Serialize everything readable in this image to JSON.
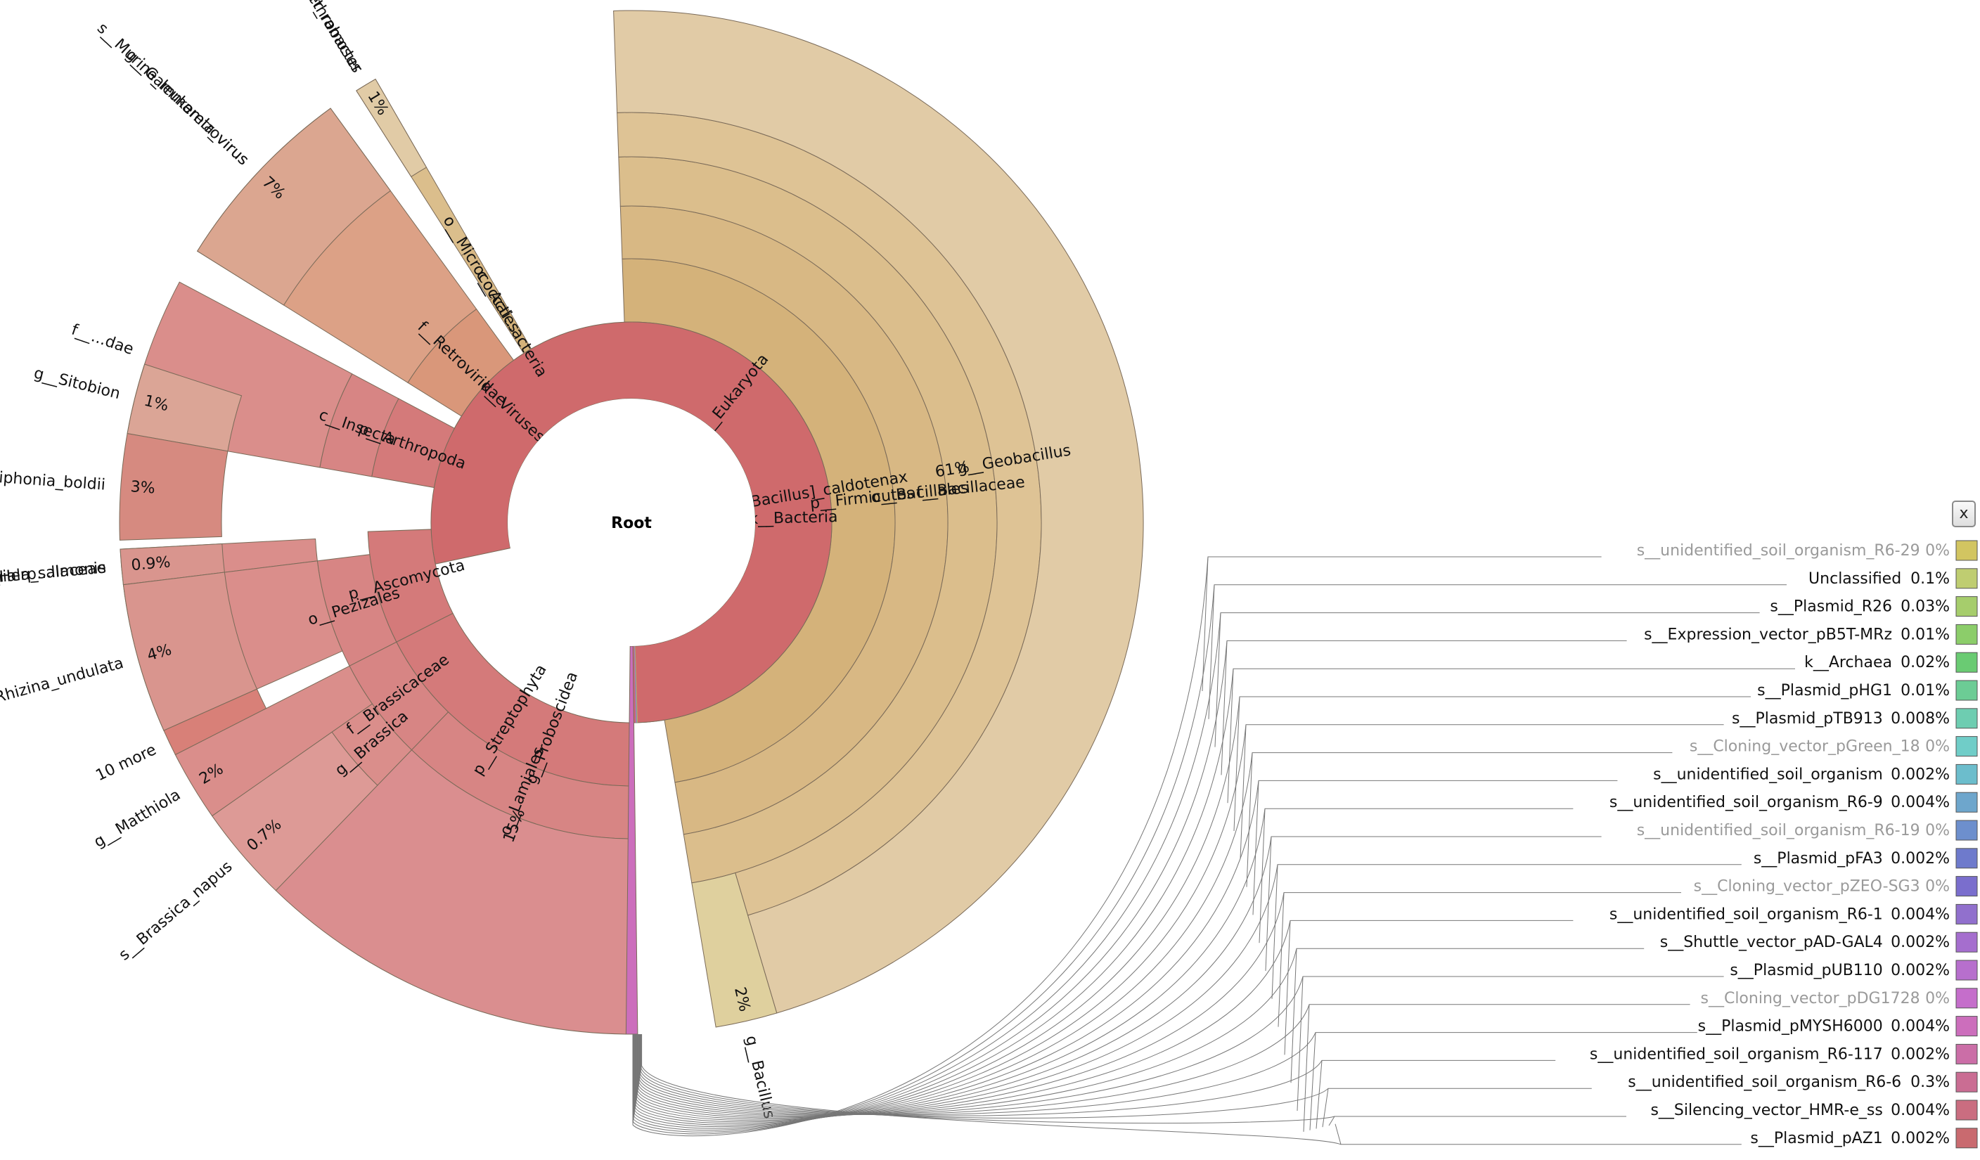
{
  "center_label": "Root",
  "close_label": "x",
  "chart_data": {
    "type": "sunburst",
    "root": "Root",
    "wedges": [
      {
        "name": "k__Bacteria",
        "ring": 1,
        "start": -2,
        "end": 179.3,
        "color": "#cfaa6c",
        "label": "k__Bacteria"
      },
      {
        "name": "p__Firmicutes",
        "ring": 2,
        "start": -2,
        "end": 170.5,
        "color": "#d4b27a",
        "label": "p__Firmicutes"
      },
      {
        "name": "o__Bacillales",
        "ring": 3,
        "start": -2,
        "end": 170.5,
        "color": "#d8b884",
        "label": "o__Bacillales"
      },
      {
        "name": "f__Bacillaceae",
        "ring": 4,
        "start": -2,
        "end": 170.5,
        "color": "#dbbe8c",
        "label": "f__Bacillaceae"
      },
      {
        "name": "g__Geobacillus",
        "ring": 5,
        "start": -2,
        "end": 163.5,
        "color": "#dec395",
        "label": "g__Geobacillus"
      },
      {
        "name": "s__[Bacillus]_caldotenax",
        "ring": 6,
        "start": -2,
        "end": 163.5,
        "color": "#e1cba6",
        "label": "s__[Bacillus]_caldotenax",
        "pct": "61%"
      },
      {
        "name": "g__Bacillus",
        "ring": 5,
        "start": 163.5,
        "end": 170.5,
        "color": "#dfd09e",
        "label": "g__Bacillus",
        "pct": "2%",
        "to_edge": true
      },
      {
        "name": "c__Actinobacteria",
        "ring": 2,
        "start": -32.5,
        "end": -30,
        "color": "#d4b27a",
        "label": "c__Acti...acteria"
      },
      {
        "name": "o__Micrococcales",
        "ring": 3,
        "start": -32.5,
        "end": -30,
        "color": "#d8b884",
        "label": "o__Micrococcales"
      },
      {
        "name": "g__Arthrobacter",
        "ring": 4,
        "start": -32.5,
        "end": -30,
        "color": "#dbbe8c",
        "label": "g__Arthrobacter",
        "to_edge": true
      },
      {
        "name": "s__Arthrobacter_ramosus",
        "ring": 6,
        "start": -32.5,
        "end": -30,
        "color": "#e1cba6",
        "label": "s__Arthrobacter_ramosus",
        "pct": "1%"
      },
      {
        "name": "k__Viruses",
        "ring": 1,
        "start": -62,
        "end": -32.5,
        "color": "#d48c6e",
        "label": "k__Viruses"
      },
      {
        "name": "f__Retroviridae",
        "ring": 2,
        "start": -58,
        "end": -36,
        "color": "#d9977a",
        "label": "f__Retroviridae"
      },
      {
        "name": "g__Gammaretrovirus",
        "ring": 3,
        "start": -58,
        "end": -36,
        "color": "#dca186",
        "label": "g__Gammaretrovirus",
        "to_edge": true
      },
      {
        "name": "s__Murine_leukemia_virus",
        "ring": 6,
        "start": -58,
        "end": -36,
        "color": "#dba690",
        "label": "s__Murine_leukemia_virus",
        "pct": "7%"
      },
      {
        "name": "k__Eukaryota",
        "ring": 1,
        "start": -102,
        "end": 180,
        "color": "#cf6a6c",
        "label": "k__Eukaryota"
      },
      {
        "name": "p__Arthropoda",
        "ring": 2,
        "start": -80,
        "end": -62,
        "color": "#d47a7a",
        "label": "p__Arthropoda"
      },
      {
        "name": "c__Insecta",
        "ring": 3,
        "start": -80,
        "end": -62,
        "color": "#d78584",
        "label": "c__Insecta"
      },
      {
        "name": "f__Aphididae",
        "ring": 4,
        "start": -80,
        "end": -62,
        "color": "#da8e8b",
        "label": "f__...dae",
        "to_edge": true
      },
      {
        "name": "g__Sitobion",
        "ring": 6,
        "start": -80,
        "end": -72,
        "color": "#dba596",
        "label": "g__Sitobion",
        "pct": "1%"
      },
      {
        "name": "s__Polysiphonia_boldii",
        "ring": 6,
        "start": -92,
        "end": -80,
        "color": "#d68a80",
        "label": "s__Polysiphonia_boldii",
        "pct": "3%"
      },
      {
        "name": "p__Ascomycota",
        "ring": 2,
        "start": -117,
        "end": -92,
        "color": "#d47a7a",
        "label": "p__Ascomycota"
      },
      {
        "name": "o__Pezizales",
        "ring": 3,
        "start": -117,
        "end": -97,
        "color": "#d78584",
        "label": "o__Pezizales"
      },
      {
        "name": "f__Herpotrichiellaceae",
        "ring": 4,
        "start": -97,
        "end": -93,
        "color": "#da8e8b",
        "label": "f__Herp...llaceae",
        "to_edge": true
      },
      {
        "name": "s__Exophiala_salmonis",
        "ring": 6,
        "start": -97,
        "end": -93,
        "color": "#d9958e",
        "label": "s__Exophiala_salmonis",
        "pct": "0.9%"
      },
      {
        "name": "g__Rhizina",
        "ring": 4,
        "start": -114,
        "end": -97,
        "color": "#da8e8b",
        "label": "",
        "to_edge": true
      },
      {
        "name": "s__Rhizina_undulata",
        "ring": 6,
        "start": -114,
        "end": -97,
        "color": "#d9958e",
        "label": "s__Rhizina_undulata",
        "pct": "4%"
      },
      {
        "name": "10 more",
        "ring": 6,
        "start": -117,
        "end": -114,
        "color": "#d88078",
        "label": "10 more"
      },
      {
        "name": "p__Streptophyta",
        "ring": 2,
        "start": -180,
        "end": -117,
        "color": "#d47a7a",
        "label": "p__Streptophyta"
      },
      {
        "name": "o__Lamiales",
        "ring": 3,
        "start": -180,
        "end": -136,
        "color": "#d78584",
        "label": "o__Lamiales"
      },
      {
        "name": "g__Proboscidea",
        "ring": 4,
        "start": -180,
        "end": -136,
        "color": "#da8e8f",
        "label": "g__Proboscidea",
        "pct": "15%",
        "to_edge": true
      },
      {
        "name": "f__Brassicaceae",
        "ring": 3,
        "start": -136,
        "end": -117,
        "color": "#d78584",
        "label": "f__Brassicaceae"
      },
      {
        "name": "g__Brassica",
        "ring": 4,
        "start": -136,
        "end": -125,
        "color": "#da8e8b",
        "label": "g__Brassica"
      },
      {
        "name": "s__Brassica_napus",
        "ring": 5,
        "start": -136,
        "end": -125,
        "color": "#dd9a96",
        "label": "s__Brassica_napus",
        "pct": "0.7%",
        "to_edge": true
      },
      {
        "name": "g__Matthiola",
        "ring": 4,
        "start": -125,
        "end": -117,
        "color": "#da8e8b",
        "label": "g__Matthiola",
        "pct": "2%",
        "to_edge": true
      }
    ],
    "legend": [
      {
        "label": "s__unidentified_soil_organism_R6-29",
        "pct": "0%",
        "color": "#d2c561",
        "dim": true
      },
      {
        "label": "Unclassified",
        "pct": "0.1%",
        "color": "#bfcd71"
      },
      {
        "label": "s__Plasmid_R26",
        "pct": "0.03%",
        "color": "#a6cd6c"
      },
      {
        "label": "s__Expression_vector_pB5T-MRz",
        "pct": "0.01%",
        "color": "#8ccd6a"
      },
      {
        "label": "k__Archaea",
        "pct": "0.02%",
        "color": "#6acb73"
      },
      {
        "label": "s__Plasmid_pHG1",
        "pct": "0.01%",
        "color": "#6ccc95"
      },
      {
        "label": "s__Plasmid_pTB913",
        "pct": "0.008%",
        "color": "#6ecdb1"
      },
      {
        "label": "s__Cloning_vector_pGreen_18",
        "pct": "0%",
        "color": "#70cdc8",
        "dim": true
      },
      {
        "label": "s__unidentified_soil_organism",
        "pct": "0.002%",
        "color": "#6cbdcc"
      },
      {
        "label": "s__unidentified_soil_organism_R6-9",
        "pct": "0.004%",
        "color": "#6ea6cc"
      },
      {
        "label": "s__unidentified_soil_organism_R6-19",
        "pct": "0%",
        "color": "#6d8fcd",
        "dim": true
      },
      {
        "label": "s__Plasmid_pFA3",
        "pct": "0.002%",
        "color": "#6e7acc"
      },
      {
        "label": "s__Cloning_vector_pZEO-SG3",
        "pct": "0%",
        "color": "#7a6ecd",
        "dim": true
      },
      {
        "label": "s__unidentified_soil_organism_R6-1",
        "pct": "0.004%",
        "color": "#9170cd"
      },
      {
        "label": "s__Shuttle_vector_pAD-GAL4",
        "pct": "0.002%",
        "color": "#a56ece"
      },
      {
        "label": "s__Plasmid_pUB110",
        "pct": "0.002%",
        "color": "#b76fcd"
      },
      {
        "label": "s__Cloning_vector_pDG1728",
        "pct": "0%",
        "color": "#c56ecb",
        "dim": true
      },
      {
        "label": "s__Plasmid_pMYSH6000",
        "pct": "0.004%",
        "color": "#cc6ebc"
      },
      {
        "label": "s__unidentified_soil_organism_R6-117",
        "pct": "0.002%",
        "color": "#cb6ea7"
      },
      {
        "label": "s__unidentified_soil_organism_R6-6",
        "pct": "0.3%",
        "color": "#ca6d93"
      },
      {
        "label": "s__Silencing_vector_HMR-e_ss",
        "pct": "0.004%",
        "color": "#ca6d80"
      },
      {
        "label": "s__Plasmid_pAZ1",
        "pct": "0.002%",
        "color": "#c96a6f"
      }
    ]
  }
}
